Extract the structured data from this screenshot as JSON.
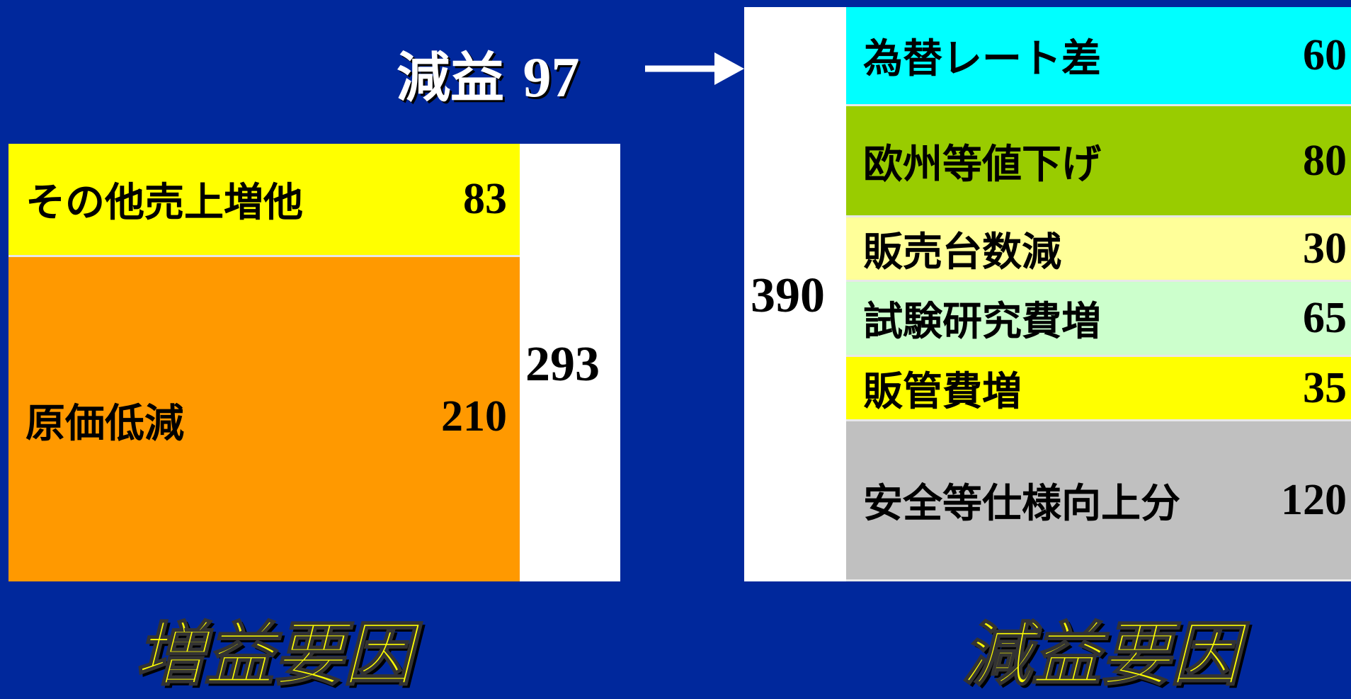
{
  "headline": {
    "label": "減益",
    "value": 97
  },
  "increase": {
    "total": 293,
    "caption": "増益要因",
    "items": [
      {
        "label": "その他売上増他",
        "value": 83,
        "color": "#ffff00"
      },
      {
        "label": "原価低減",
        "value": 210,
        "color": "#ff9900"
      }
    ]
  },
  "decrease": {
    "total": 390,
    "caption": "減益要因",
    "items": [
      {
        "label": "為替レート差",
        "value": 60,
        "color": "#00ffff"
      },
      {
        "label": "欧州等値下げ",
        "value": 80,
        "color": "#99cc00"
      },
      {
        "label": "販売台数減",
        "value": 30,
        "color": "#ffff99"
      },
      {
        "label": "試験研究費増",
        "value": 65,
        "color": "#ccffcc"
      },
      {
        "label": "販管費増",
        "value": 35,
        "color": "#ffff00"
      },
      {
        "label": "安全等仕様向上分",
        "value": 120,
        "color": "#c0c0c0"
      }
    ]
  }
}
